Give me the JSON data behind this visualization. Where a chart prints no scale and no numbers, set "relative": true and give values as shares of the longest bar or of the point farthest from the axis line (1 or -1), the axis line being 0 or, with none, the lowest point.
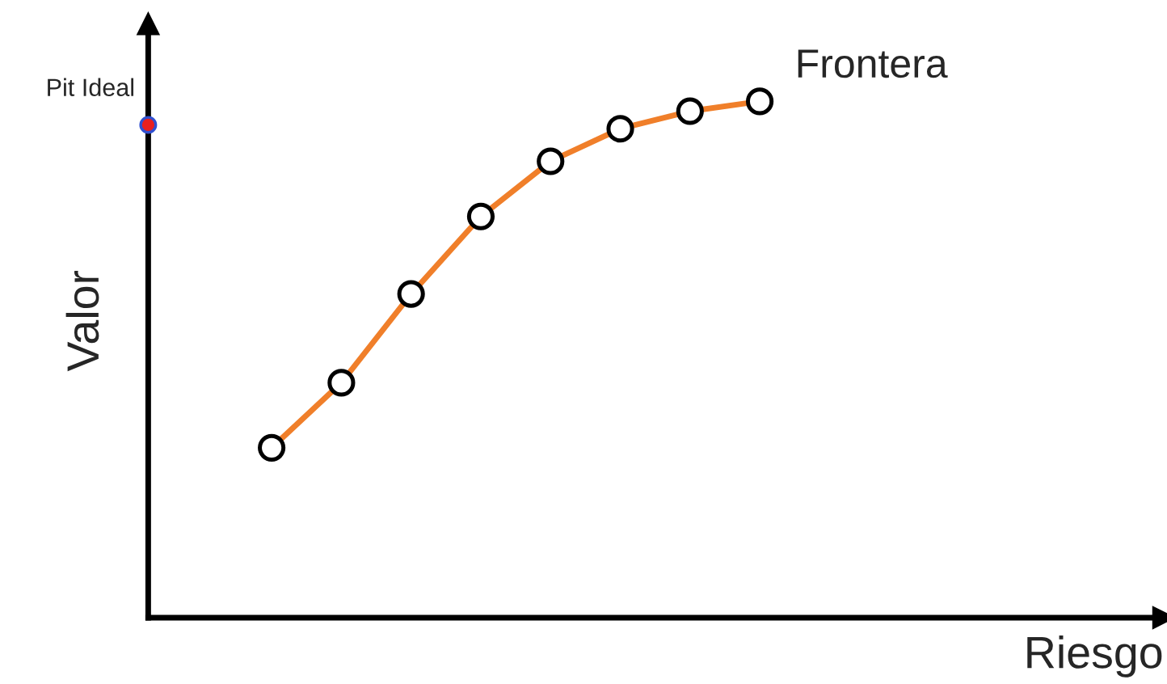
{
  "chart_data": {
    "type": "line",
    "relative": true,
    "ylabel": "Valor",
    "marker": "circle",
    "categories": [
      null,
      null,
      null,
      null,
      null,
      null,
      null,
      null
    ],
    "annotations": [
      "Pit Ideal",
      "Riesgo"
    ],
    "series": [
      {
        "name": "Frontera",
        "color": "#f07f2a",
        "values": [
          0.329,
          0.455,
          0.627,
          0.777,
          0.884,
          0.947,
          0.981,
          1.0
        ]
      }
    ]
  }
}
